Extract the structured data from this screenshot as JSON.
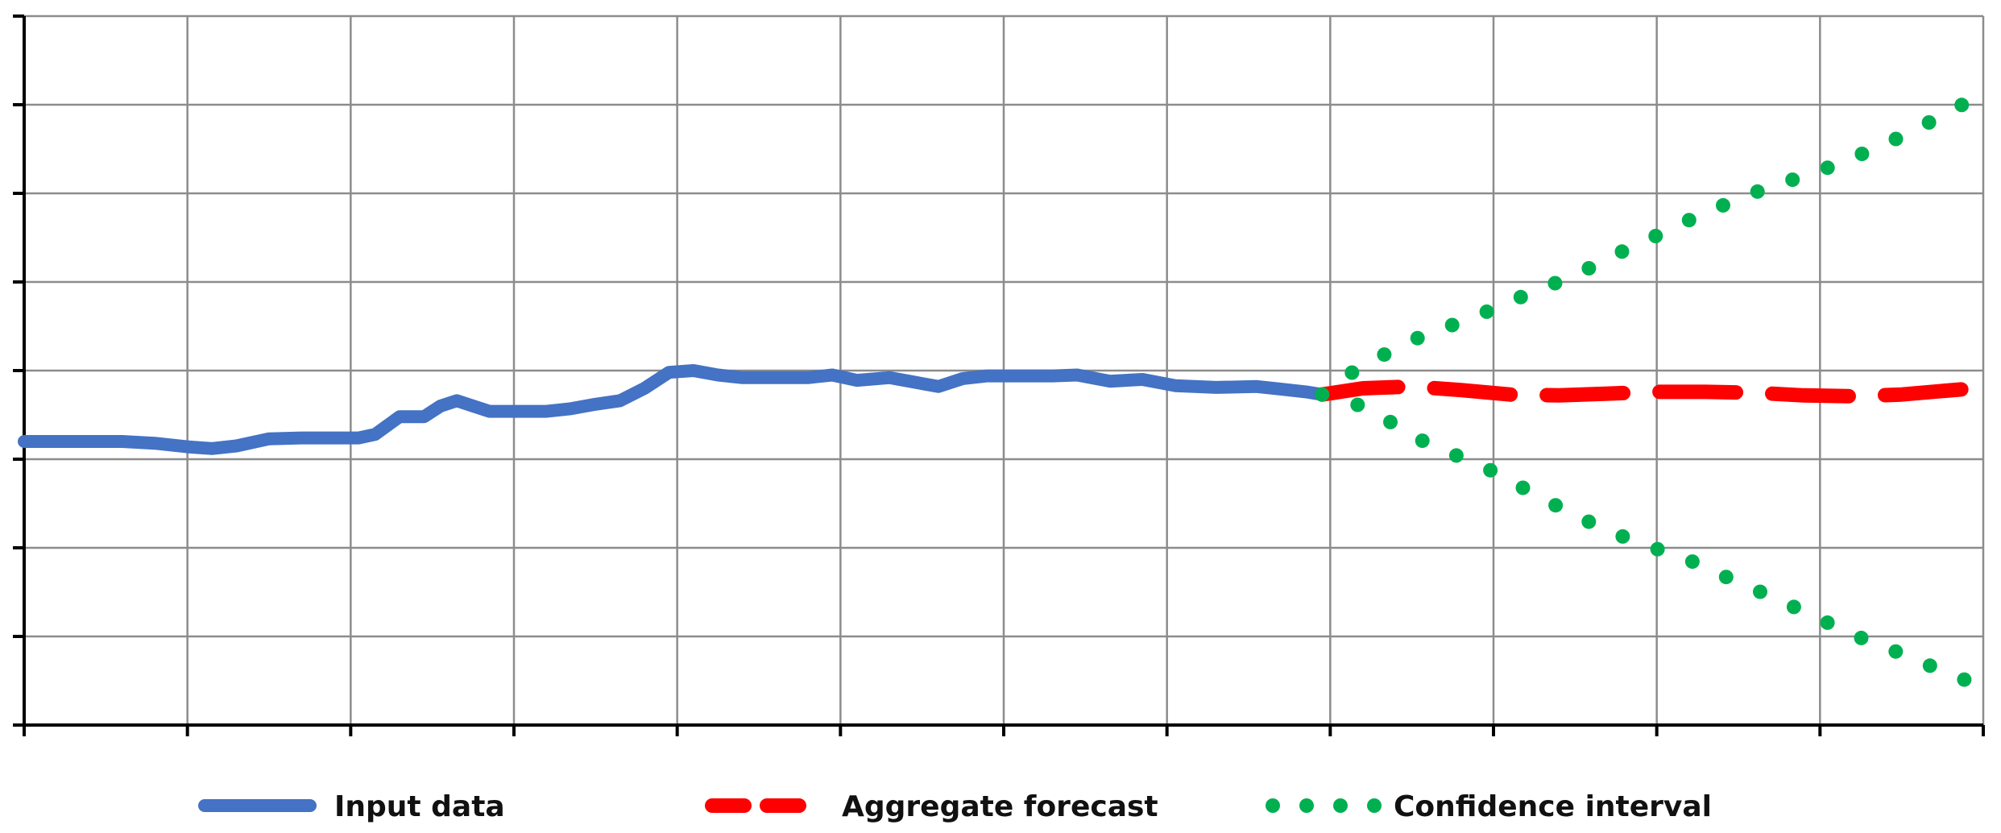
{
  "chart_data": {
    "type": "line",
    "title": "",
    "xlabel": "",
    "ylabel": "",
    "xlim": [
      0,
      12
    ],
    "ylim": [
      0,
      8
    ],
    "x_gridlines": 12,
    "y_gridlines": 8,
    "grid": true,
    "tick_labels": false,
    "legend": "bottom",
    "series": [
      {
        "name": "Input data",
        "style": "solid",
        "color": "#4472c4",
        "points": [
          [
            0.0,
            3.2
          ],
          [
            0.3,
            3.2
          ],
          [
            0.6,
            3.2
          ],
          [
            0.8,
            3.18
          ],
          [
            1.0,
            3.14
          ],
          [
            1.15,
            3.12
          ],
          [
            1.3,
            3.15
          ],
          [
            1.5,
            3.23
          ],
          [
            1.7,
            3.24
          ],
          [
            1.9,
            3.24
          ],
          [
            2.05,
            3.24
          ],
          [
            2.15,
            3.28
          ],
          [
            2.3,
            3.48
          ],
          [
            2.45,
            3.48
          ],
          [
            2.55,
            3.6
          ],
          [
            2.65,
            3.66
          ],
          [
            2.75,
            3.6
          ],
          [
            2.85,
            3.54
          ],
          [
            3.0,
            3.54
          ],
          [
            3.2,
            3.54
          ],
          [
            3.35,
            3.57
          ],
          [
            3.5,
            3.62
          ],
          [
            3.65,
            3.66
          ],
          [
            3.8,
            3.8
          ],
          [
            3.95,
            3.98
          ],
          [
            4.1,
            4.0
          ],
          [
            4.25,
            3.95
          ],
          [
            4.4,
            3.92
          ],
          [
            4.6,
            3.92
          ],
          [
            4.8,
            3.92
          ],
          [
            4.95,
            3.95
          ],
          [
            5.1,
            3.89
          ],
          [
            5.3,
            3.92
          ],
          [
            5.45,
            3.87
          ],
          [
            5.6,
            3.82
          ],
          [
            5.75,
            3.91
          ],
          [
            5.9,
            3.94
          ],
          [
            6.1,
            3.94
          ],
          [
            6.3,
            3.94
          ],
          [
            6.45,
            3.95
          ],
          [
            6.65,
            3.88
          ],
          [
            6.85,
            3.9
          ],
          [
            7.05,
            3.83
          ],
          [
            7.3,
            3.81
          ],
          [
            7.55,
            3.82
          ],
          [
            7.7,
            3.79
          ],
          [
            7.85,
            3.76
          ],
          [
            7.95,
            3.73
          ]
        ]
      },
      {
        "name": "Aggregate forecast",
        "style": "dashed",
        "color": "#ff0000",
        "points": [
          [
            7.95,
            3.73
          ],
          [
            8.2,
            3.8
          ],
          [
            8.5,
            3.82
          ],
          [
            8.8,
            3.78
          ],
          [
            9.1,
            3.73
          ],
          [
            9.4,
            3.72
          ],
          [
            9.7,
            3.74
          ],
          [
            10.0,
            3.76
          ],
          [
            10.3,
            3.76
          ],
          [
            10.6,
            3.75
          ],
          [
            10.9,
            3.72
          ],
          [
            11.2,
            3.71
          ],
          [
            11.5,
            3.73
          ],
          [
            11.75,
            3.77
          ],
          [
            11.95,
            3.8
          ]
        ]
      },
      {
        "name": "Confidence interval",
        "style": "dotted",
        "color": "#00b050",
        "upper": [
          [
            7.95,
            3.73
          ],
          [
            8.15,
            4.0
          ],
          [
            8.35,
            4.2
          ],
          [
            8.55,
            4.38
          ],
          [
            8.8,
            4.55
          ],
          [
            9.05,
            4.73
          ],
          [
            9.25,
            4.9
          ],
          [
            9.5,
            5.07
          ],
          [
            9.7,
            5.27
          ],
          [
            9.95,
            5.48
          ],
          [
            10.2,
            5.7
          ],
          [
            10.45,
            5.9
          ],
          [
            10.7,
            6.08
          ],
          [
            10.95,
            6.22
          ],
          [
            11.2,
            6.4
          ],
          [
            11.45,
            6.6
          ],
          [
            11.7,
            6.83
          ],
          [
            11.9,
            7.03
          ]
        ],
        "lower": [
          [
            7.95,
            3.73
          ],
          [
            8.15,
            3.63
          ],
          [
            8.35,
            3.44
          ],
          [
            8.55,
            3.22
          ],
          [
            8.8,
            3.02
          ],
          [
            9.05,
            2.82
          ],
          [
            9.25,
            2.6
          ],
          [
            9.5,
            2.37
          ],
          [
            9.7,
            2.19
          ],
          [
            9.95,
            2.02
          ],
          [
            10.2,
            1.86
          ],
          [
            10.45,
            1.65
          ],
          [
            10.7,
            1.45
          ],
          [
            10.95,
            1.24
          ],
          [
            11.2,
            1.02
          ],
          [
            11.45,
            0.84
          ],
          [
            11.7,
            0.65
          ],
          [
            11.9,
            0.5
          ]
        ]
      }
    ],
    "legend_entries": [
      {
        "label": "Input data",
        "style": "solid",
        "color": "#4472c4"
      },
      {
        "label": "Aggregate forecast",
        "style": "dashed",
        "color": "#ff0000"
      },
      {
        "label": "Confidence interval",
        "style": "dotted",
        "color": "#00b050"
      }
    ]
  }
}
